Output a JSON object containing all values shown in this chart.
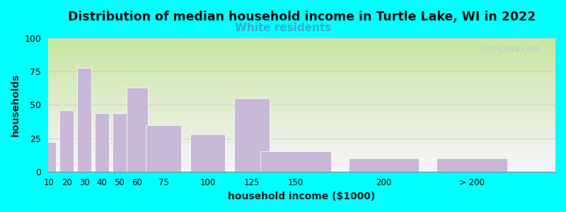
{
  "title": "Distribution of median household income in Turtle Lake, WI in 2022",
  "subtitle": "White residents",
  "xlabel": "household income ($1000)",
  "ylabel": "households",
  "title_fontsize": 12.5,
  "subtitle_fontsize": 11,
  "subtitle_color": "#3aabcc",
  "bar_color": "#c9b8d8",
  "bar_edge_color": "#ffffff",
  "ylim": [
    0,
    100
  ],
  "yticks": [
    0,
    25,
    50,
    75,
    100
  ],
  "categories": [
    "10",
    "20",
    "30",
    "40",
    "50",
    "60",
    "75",
    "100",
    "125",
    "150",
    "200",
    "> 200"
  ],
  "values": [
    22,
    46,
    78,
    44,
    44,
    63,
    35,
    28,
    55,
    15,
    10,
    10
  ],
  "background_color": "#00ffff",
  "plot_bg_top": "#c8e6a0",
  "plot_bg_bottom": "#f8f4fc",
  "watermark_text": "City-Data.com",
  "watermark_color": "#b8c8d8",
  "grid_color": "#cccccc",
  "x_positions": [
    10,
    20,
    30,
    40,
    50,
    60,
    75,
    100,
    125,
    150,
    200,
    250
  ],
  "bin_widths": [
    10,
    10,
    10,
    10,
    10,
    15,
    25,
    25,
    25,
    50,
    50,
    50
  ],
  "x_tick_positions": [
    10,
    20,
    30,
    40,
    50,
    60,
    75,
    100,
    125,
    150,
    200,
    250
  ],
  "x_tick_labels": [
    "10",
    "20",
    "30",
    "40",
    "50",
    "60",
    "75",
    "100",
    "125",
    "150",
    "200",
    "> 200"
  ]
}
